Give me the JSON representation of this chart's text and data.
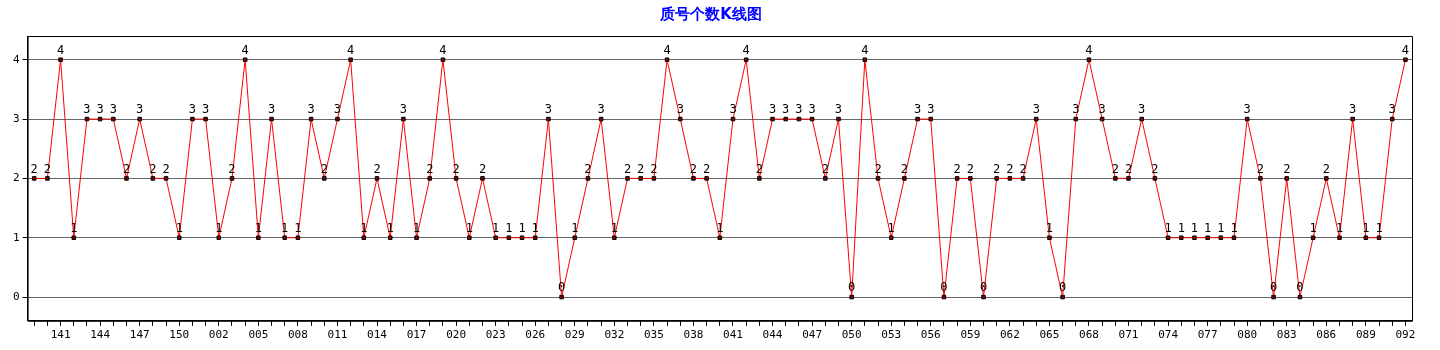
{
  "chart_data": {
    "type": "line",
    "title": "质号个数K线图",
    "categories": [
      null,
      null,
      "141",
      null,
      null,
      "144",
      null,
      null,
      "147",
      null,
      null,
      "150",
      null,
      null,
      "002",
      null,
      null,
      "005",
      null,
      null,
      "008",
      null,
      null,
      "011",
      null,
      null,
      "014",
      null,
      null,
      "017",
      null,
      null,
      "020",
      null,
      null,
      "023",
      null,
      null,
      "026",
      null,
      null,
      "029",
      null,
      null,
      "032",
      null,
      null,
      "035",
      null,
      null,
      "038",
      null,
      null,
      "041",
      null,
      null,
      "044",
      null,
      null,
      "047",
      null,
      null,
      "050",
      null,
      null,
      "053",
      null,
      null,
      "056",
      null,
      null,
      "059",
      null,
      null,
      "062",
      null,
      null,
      "065",
      null,
      null,
      "068",
      null,
      null,
      "071",
      null,
      null,
      "074",
      null,
      null,
      "077",
      null,
      null,
      "080",
      null,
      null,
      "083",
      null,
      null,
      "086",
      null,
      null,
      "089",
      null,
      null,
      "092"
    ],
    "series": [
      {
        "color": "#ff0000",
        "values": [
          2,
          2,
          4,
          1,
          3,
          3,
          3,
          2,
          3,
          2,
          2,
          1,
          3,
          3,
          1,
          2,
          4,
          1,
          3,
          1,
          1,
          3,
          2,
          3,
          4,
          1,
          2,
          1,
          3,
          1,
          2,
          4,
          2,
          1,
          2,
          1,
          1,
          1,
          1,
          3,
          0,
          1,
          2,
          3,
          1,
          2,
          2,
          2,
          4,
          3,
          2,
          2,
          1,
          3,
          4,
          2,
          3,
          3,
          3,
          3,
          2,
          3,
          0,
          4,
          2,
          1,
          2,
          3,
          3,
          0,
          2,
          2,
          0,
          2,
          2,
          2,
          3,
          1,
          0,
          3,
          4,
          3,
          2,
          2,
          3,
          2,
          1,
          1,
          1,
          1,
          1,
          1,
          3,
          2,
          0,
          2,
          0,
          1,
          2,
          1,
          3,
          1,
          1,
          3,
          4
        ]
      }
    ],
    "ylim": [
      -0.4,
      4.4
    ],
    "yticks": [
      0,
      1,
      2,
      3,
      4
    ],
    "grid": "y",
    "marker": "square",
    "line_style": "solid",
    "data_labels": true,
    "legend": false
  }
}
